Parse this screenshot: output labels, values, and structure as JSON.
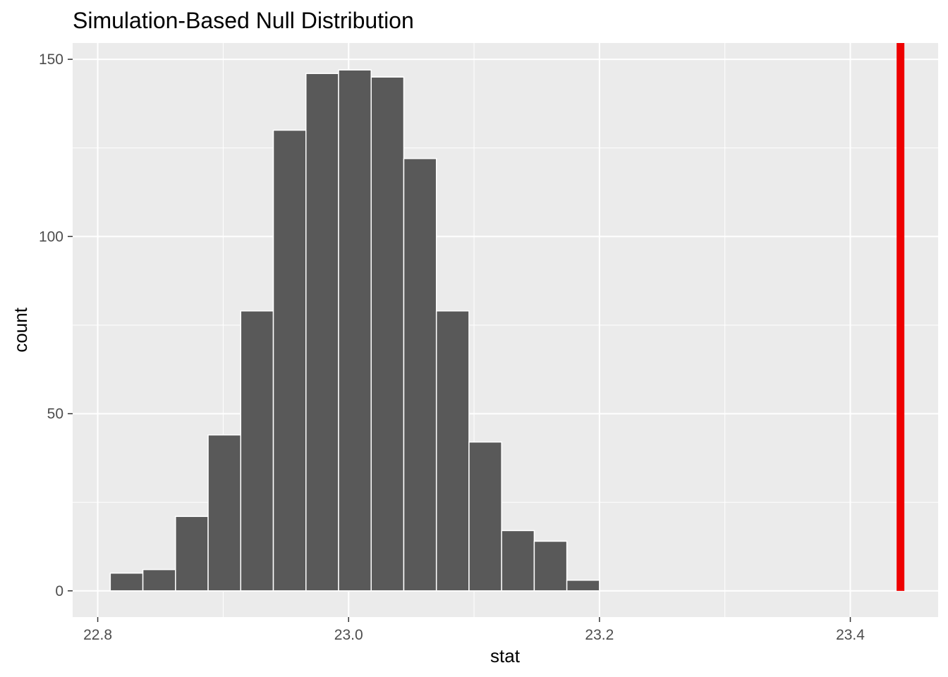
{
  "chart_data": {
    "type": "bar",
    "title": "Simulation-Based Null Distribution",
    "xlabel": "stat",
    "ylabel": "count",
    "xlim": [
      22.78,
      23.47
    ],
    "ylim": [
      -7.4,
      154.6
    ],
    "x_ticks": [
      22.8,
      23.0,
      23.2,
      23.4
    ],
    "x_tick_labels": [
      "22.8",
      "23.0",
      "23.2",
      "23.4"
    ],
    "y_ticks": [
      0,
      50,
      100,
      150
    ],
    "y_tick_labels": [
      "0",
      "50",
      "100",
      "150"
    ],
    "x_minor_ticks": [
      22.9,
      23.1,
      23.3
    ],
    "y_minor_ticks": [
      25,
      75,
      125
    ],
    "bins": [
      {
        "x0": 22.81,
        "x1": 22.836,
        "count": 5
      },
      {
        "x0": 22.836,
        "x1": 22.862,
        "count": 6
      },
      {
        "x0": 22.862,
        "x1": 22.888,
        "count": 21
      },
      {
        "x0": 22.888,
        "x1": 22.914,
        "count": 44
      },
      {
        "x0": 22.914,
        "x1": 22.94,
        "count": 79
      },
      {
        "x0": 22.94,
        "x1": 22.966,
        "count": 130
      },
      {
        "x0": 22.966,
        "x1": 22.992,
        "count": 146
      },
      {
        "x0": 22.992,
        "x1": 23.018,
        "count": 147
      },
      {
        "x0": 23.018,
        "x1": 23.044,
        "count": 145
      },
      {
        "x0": 23.044,
        "x1": 23.07,
        "count": 122
      },
      {
        "x0": 23.07,
        "x1": 23.096,
        "count": 79
      },
      {
        "x0": 23.096,
        "x1": 23.122,
        "count": 42
      },
      {
        "x0": 23.122,
        "x1": 23.148,
        "count": 17
      },
      {
        "x0": 23.148,
        "x1": 23.174,
        "count": 14
      },
      {
        "x0": 23.174,
        "x1": 23.2,
        "count": 3
      }
    ],
    "observed_stat": 23.44,
    "colors": {
      "panel": "#ebebeb",
      "grid": "#ffffff",
      "bar_fill": "#595959",
      "bar_outline": "#ffffff",
      "observed_line": "#ee0000"
    },
    "grid": true,
    "legend": "none"
  }
}
